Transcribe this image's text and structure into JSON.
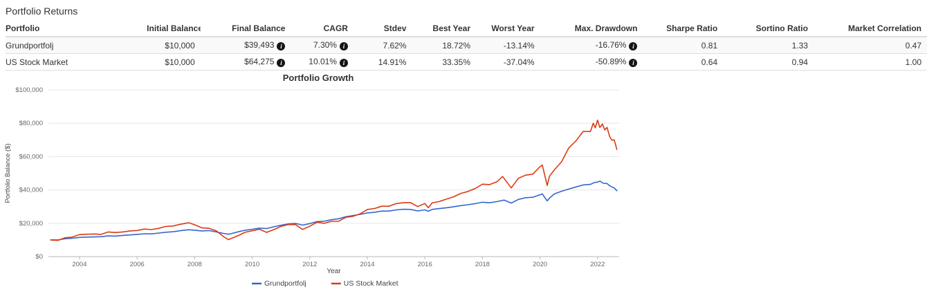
{
  "page": {
    "title": "Portfolio Returns"
  },
  "table": {
    "columns": [
      "Portfolio",
      "Initial Balance",
      "Final Balance",
      "CAGR",
      "Stdev",
      "Best Year",
      "Worst Year",
      "Max. Drawdown",
      "Sharpe Ratio",
      "Sortino Ratio",
      "Market Correlation"
    ],
    "rows": [
      {
        "cells": [
          {
            "text": "Grundportfolj"
          },
          {
            "text": "$10,000"
          },
          {
            "text": "$39,493",
            "info": true
          },
          {
            "text": "7.30%",
            "info": true
          },
          {
            "text": "7.62%"
          },
          {
            "text": "18.72%"
          },
          {
            "text": "-13.14%"
          },
          {
            "text": "-16.76%",
            "info": true
          },
          {
            "text": "0.81"
          },
          {
            "text": "1.33"
          },
          {
            "text": "0.47"
          }
        ]
      },
      {
        "cells": [
          {
            "text": "US Stock Market"
          },
          {
            "text": "$10,000"
          },
          {
            "text": "$64,275",
            "info": true
          },
          {
            "text": "10.01%",
            "info": true
          },
          {
            "text": "14.91%"
          },
          {
            "text": "33.35%"
          },
          {
            "text": "-37.04%"
          },
          {
            "text": "-50.89%",
            "info": true
          },
          {
            "text": "0.64"
          },
          {
            "text": "0.94"
          },
          {
            "text": "1.00"
          }
        ]
      }
    ],
    "info_icon_glyph": "i"
  },
  "chart_data": {
    "type": "line",
    "title": "Portfolio Growth",
    "xlabel": "Year",
    "ylabel": "Portfolio Balance ($)",
    "grid": true,
    "legend_position": "bottom",
    "xlim": [
      2002.92,
      2022.75
    ],
    "ylim": [
      0,
      100000
    ],
    "xticks": [
      2004,
      2006,
      2008,
      2010,
      2012,
      2014,
      2016,
      2018,
      2020,
      2022
    ],
    "xtick_labels": [
      "2004",
      "2006",
      "2008",
      "2010",
      "2012",
      "2014",
      "2016",
      "2018",
      "2020",
      "2022"
    ],
    "yticks": [
      0,
      20000,
      40000,
      60000,
      80000,
      100000
    ],
    "ytick_labels": [
      "$0",
      "$20,000",
      "$40,000",
      "$60,000",
      "$80,000",
      "$100,000"
    ],
    "axis_color": "#b7b7b7",
    "grid_color": "#e6e6e6",
    "tick_label_color": "#666666",
    "axis_title_color": "#444444",
    "title_color": "#333333",
    "series": [
      {
        "name": "Grundportfolj",
        "color": "#3366cc",
        "points": [
          [
            2003.0,
            10000
          ],
          [
            2003.25,
            10000
          ],
          [
            2003.5,
            10700
          ],
          [
            2003.75,
            11000
          ],
          [
            2004.0,
            11500
          ],
          [
            2004.25,
            11700
          ],
          [
            2004.5,
            11800
          ],
          [
            2004.75,
            11900
          ],
          [
            2005.0,
            12400
          ],
          [
            2005.25,
            12300
          ],
          [
            2005.5,
            12700
          ],
          [
            2005.75,
            13000
          ],
          [
            2006.0,
            13300
          ],
          [
            2006.25,
            13700
          ],
          [
            2006.5,
            13600
          ],
          [
            2006.75,
            14100
          ],
          [
            2007.0,
            14600
          ],
          [
            2007.25,
            14900
          ],
          [
            2007.5,
            15500
          ],
          [
            2007.8,
            16100
          ],
          [
            2008.0,
            15800
          ],
          [
            2008.25,
            15400
          ],
          [
            2008.5,
            15600
          ],
          [
            2008.75,
            14800
          ],
          [
            2009.0,
            13900
          ],
          [
            2009.17,
            13400
          ],
          [
            2009.25,
            13700
          ],
          [
            2009.5,
            14800
          ],
          [
            2009.75,
            15800
          ],
          [
            2010.0,
            16400
          ],
          [
            2010.25,
            17100
          ],
          [
            2010.5,
            16800
          ],
          [
            2010.75,
            17900
          ],
          [
            2011.0,
            18800
          ],
          [
            2011.25,
            19600
          ],
          [
            2011.5,
            19900
          ],
          [
            2011.75,
            18900
          ],
          [
            2012.0,
            19800
          ],
          [
            2012.25,
            21000
          ],
          [
            2012.5,
            21200
          ],
          [
            2012.75,
            22100
          ],
          [
            2013.0,
            22700
          ],
          [
            2013.25,
            23900
          ],
          [
            2013.5,
            24600
          ],
          [
            2013.75,
            25300
          ],
          [
            2014.0,
            26200
          ],
          [
            2014.25,
            26600
          ],
          [
            2014.5,
            27300
          ],
          [
            2014.75,
            27300
          ],
          [
            2015.0,
            28000
          ],
          [
            2015.25,
            28400
          ],
          [
            2015.5,
            28300
          ],
          [
            2015.75,
            27400
          ],
          [
            2016.0,
            28000
          ],
          [
            2016.12,
            27200
          ],
          [
            2016.25,
            28300
          ],
          [
            2016.5,
            28800
          ],
          [
            2016.75,
            29300
          ],
          [
            2017.0,
            29900
          ],
          [
            2017.25,
            30600
          ],
          [
            2017.5,
            31100
          ],
          [
            2017.75,
            31800
          ],
          [
            2018.0,
            32600
          ],
          [
            2018.25,
            32300
          ],
          [
            2018.5,
            33000
          ],
          [
            2018.75,
            33900
          ],
          [
            2019.0,
            32100
          ],
          [
            2019.25,
            34300
          ],
          [
            2019.5,
            35300
          ],
          [
            2019.75,
            35600
          ],
          [
            2020.0,
            37100
          ],
          [
            2020.08,
            37600
          ],
          [
            2020.25,
            33400
          ],
          [
            2020.33,
            35100
          ],
          [
            2020.5,
            37600
          ],
          [
            2020.75,
            39200
          ],
          [
            2021.0,
            40500
          ],
          [
            2021.25,
            41800
          ],
          [
            2021.5,
            43000
          ],
          [
            2021.75,
            43300
          ],
          [
            2021.9,
            44500
          ],
          [
            2022.0,
            44700
          ],
          [
            2022.08,
            45300
          ],
          [
            2022.2,
            44000
          ],
          [
            2022.33,
            43800
          ],
          [
            2022.42,
            42500
          ],
          [
            2022.5,
            41800
          ],
          [
            2022.58,
            41200
          ],
          [
            2022.67,
            39493
          ]
        ]
      },
      {
        "name": "US Stock Market",
        "color": "#dc3912",
        "points": [
          [
            2003.0,
            10000
          ],
          [
            2003.25,
            9700
          ],
          [
            2003.5,
            11300
          ],
          [
            2003.75,
            11700
          ],
          [
            2004.0,
            13135
          ],
          [
            2004.25,
            13420
          ],
          [
            2004.5,
            13580
          ],
          [
            2004.75,
            13330
          ],
          [
            2005.0,
            14780
          ],
          [
            2005.25,
            14450
          ],
          [
            2005.5,
            14790
          ],
          [
            2005.75,
            15380
          ],
          [
            2006.0,
            15660
          ],
          [
            2006.25,
            16510
          ],
          [
            2006.5,
            16200
          ],
          [
            2006.75,
            16910
          ],
          [
            2007.0,
            18090
          ],
          [
            2007.25,
            18330
          ],
          [
            2007.5,
            19390
          ],
          [
            2007.8,
            20300
          ],
          [
            2008.0,
            19080
          ],
          [
            2008.25,
            17270
          ],
          [
            2008.5,
            16980
          ],
          [
            2008.75,
            15500
          ],
          [
            2009.0,
            12020
          ],
          [
            2009.17,
            10150
          ],
          [
            2009.25,
            10710
          ],
          [
            2009.5,
            12510
          ],
          [
            2009.75,
            14550
          ],
          [
            2010.0,
            15470
          ],
          [
            2010.25,
            16380
          ],
          [
            2010.5,
            14530
          ],
          [
            2010.75,
            16200
          ],
          [
            2011.0,
            18080
          ],
          [
            2011.25,
            19220
          ],
          [
            2011.5,
            19200
          ],
          [
            2011.75,
            16260
          ],
          [
            2012.0,
            18230
          ],
          [
            2012.25,
            20580
          ],
          [
            2012.5,
            19940
          ],
          [
            2012.75,
            21180
          ],
          [
            2013.0,
            21220
          ],
          [
            2013.25,
            23520
          ],
          [
            2013.5,
            24160
          ],
          [
            2013.75,
            25660
          ],
          [
            2014.0,
            28250
          ],
          [
            2014.25,
            28820
          ],
          [
            2014.5,
            30200
          ],
          [
            2014.75,
            30200
          ],
          [
            2015.0,
            31770
          ],
          [
            2015.25,
            32340
          ],
          [
            2015.5,
            32370
          ],
          [
            2015.75,
            30010
          ],
          [
            2016.0,
            31870
          ],
          [
            2016.12,
            29300
          ],
          [
            2016.25,
            32190
          ],
          [
            2016.5,
            33030
          ],
          [
            2016.75,
            34480
          ],
          [
            2017.0,
            35890
          ],
          [
            2017.25,
            37940
          ],
          [
            2017.5,
            39080
          ],
          [
            2017.75,
            40880
          ],
          [
            2018.0,
            43450
          ],
          [
            2018.25,
            43190
          ],
          [
            2018.5,
            44870
          ],
          [
            2018.7,
            48060
          ],
          [
            2019.0,
            41190
          ],
          [
            2019.25,
            46960
          ],
          [
            2019.5,
            48890
          ],
          [
            2019.75,
            49480
          ],
          [
            2020.0,
            53930
          ],
          [
            2020.08,
            54900
          ],
          [
            2020.25,
            42650
          ],
          [
            2020.33,
            48200
          ],
          [
            2020.5,
            52090
          ],
          [
            2020.75,
            56880
          ],
          [
            2021.0,
            65240
          ],
          [
            2021.25,
            69410
          ],
          [
            2021.5,
            75100
          ],
          [
            2021.75,
            75030
          ],
          [
            2021.85,
            80000
          ],
          [
            2021.92,
            77200
          ],
          [
            2022.0,
            81860
          ],
          [
            2022.08,
            77500
          ],
          [
            2022.17,
            79500
          ],
          [
            2022.25,
            76000
          ],
          [
            2022.33,
            77500
          ],
          [
            2022.42,
            72000
          ],
          [
            2022.5,
            69800
          ],
          [
            2022.58,
            70000
          ],
          [
            2022.67,
            64275
          ]
        ]
      }
    ]
  }
}
